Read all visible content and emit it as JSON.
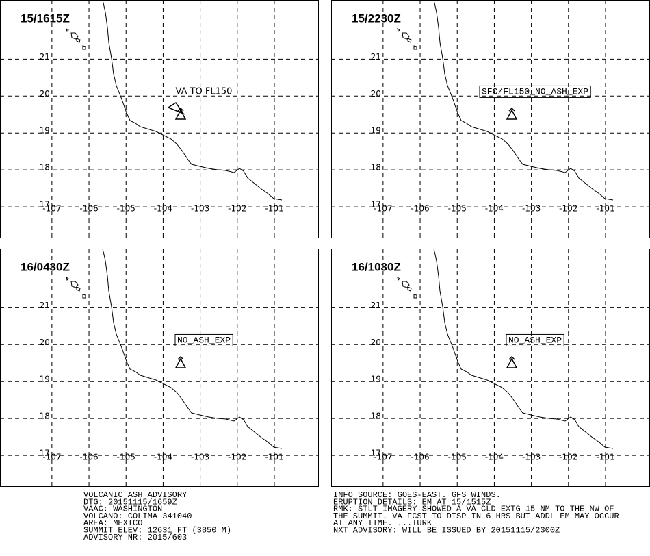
{
  "panels": [
    {
      "time": "15/1615Z",
      "annotation": "VA TO FL150",
      "boxed": false
    },
    {
      "time": "15/2230Z",
      "annotation": "SFC/FL150_NO_ASH_EXP",
      "boxed": true
    },
    {
      "time": "16/0430Z",
      "annotation": "NO_ASH_EXP",
      "boxed": true
    },
    {
      "time": "16/1030Z",
      "annotation": "NO_ASH_EXP",
      "boxed": true
    }
  ],
  "lon_ticks": [
    -107,
    -106,
    -105,
    -104,
    -103,
    -102,
    -101
  ],
  "lat_ticks": [
    21,
    20,
    19,
    18,
    17
  ],
  "xlim": [
    -108.4,
    -99.8
  ],
  "ylim": [
    16.15,
    22.6
  ],
  "advisory": {
    "left": [
      "VOLCANIC ASH ADVISORY",
      "DTG: 20151115/1659Z",
      "VAAC: WASHINGTON",
      "VOLCANO: COLIMA 341040",
      "AREA: MEXICO",
      "SUMMIT ELEV: 12631 FT (3850 M)",
      "ADVISORY NR: 2015/603"
    ],
    "right": [
      "INFO SOURCE: GOES-EAST. GFS WINDS.",
      "ERUPTION DETAILS: EM AT 15/1515Z",
      "RMK: STLT IMAGERY SHOWED A VA CLD EXTG 15 NM TO THE NW OF",
      "THE SUMMIT. VA FCST TO DISP IN 6 HRS BUT ADDL EM MAY OCCUR",
      "AT ANY TIME. ...TURK",
      "NXT ADVISORY: WILL BE ISSUED BY 20151115/2300Z"
    ]
  }
}
